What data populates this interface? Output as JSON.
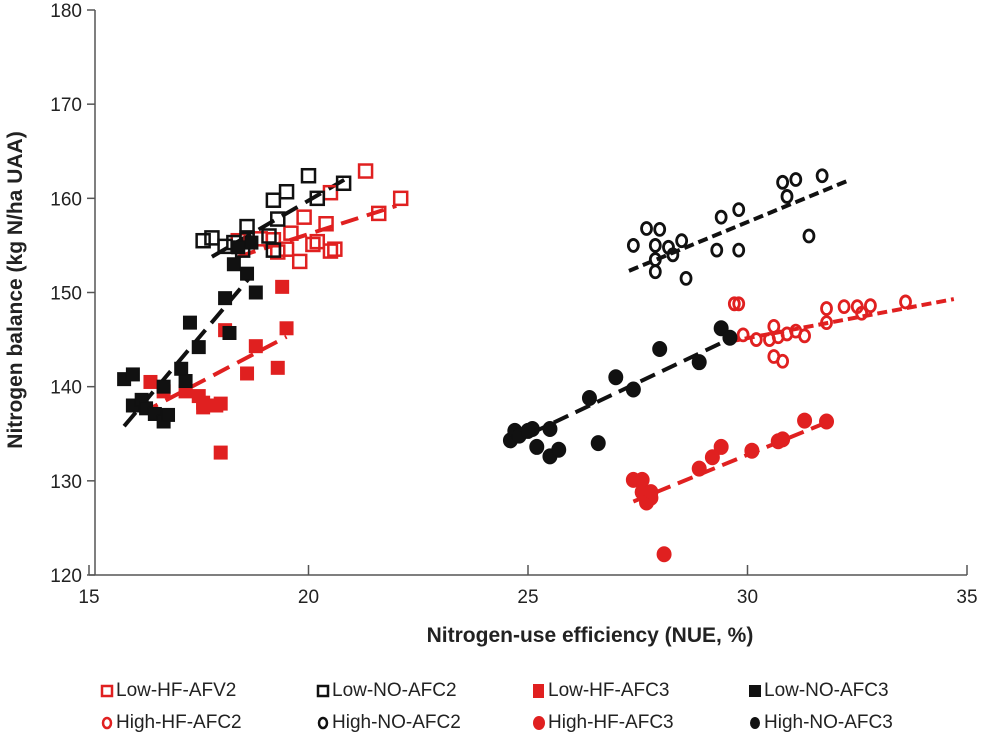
{
  "chart_data": {
    "type": "scatter",
    "title": "",
    "xlabel": "Nitrogen-use efficiency (NUE, %)",
    "ylabel": "Nitrogen balance (kg N/ha UAA)",
    "xlim": [
      15,
      35
    ],
    "ylim": [
      120,
      180
    ],
    "xticks": [
      15,
      20,
      25,
      30,
      35
    ],
    "yticks": [
      120,
      130,
      140,
      150,
      160,
      170,
      180
    ],
    "grid": false,
    "legend_position": "bottom",
    "series": [
      {
        "name": "Low-HF-AFV2",
        "color": "#e02020",
        "marker": "square",
        "filled": false,
        "points": [
          [
            21.3,
            162.9
          ],
          [
            22.1,
            160.0
          ],
          [
            21.6,
            158.4
          ],
          [
            20.5,
            160.6
          ],
          [
            20.4,
            157.3
          ],
          [
            19.9,
            158.0
          ],
          [
            19.6,
            156.3
          ],
          [
            19.8,
            153.3
          ],
          [
            20.1,
            155.1
          ],
          [
            20.2,
            155.4
          ],
          [
            19.5,
            154.6
          ],
          [
            19.3,
            154.3
          ],
          [
            19.2,
            155.6
          ],
          [
            18.9,
            155.7
          ],
          [
            20.5,
            154.4
          ],
          [
            20.6,
            154.6
          ],
          [
            18.4,
            155.5
          ]
        ],
        "trend": [
          [
            18.4,
            153.8
          ],
          [
            22.0,
            159.2
          ]
        ]
      },
      {
        "name": "Low-NO-AFC2",
        "color": "#111111",
        "marker": "square",
        "filled": false,
        "points": [
          [
            17.6,
            155.5
          ],
          [
            17.8,
            155.8
          ],
          [
            18.1,
            154.9
          ],
          [
            18.3,
            155.3
          ],
          [
            18.6,
            157.0
          ],
          [
            18.5,
            154.5
          ],
          [
            18.6,
            155.8
          ],
          [
            19.1,
            156.0
          ],
          [
            19.2,
            159.8
          ],
          [
            19.5,
            160.7
          ],
          [
            19.3,
            157.8
          ],
          [
            19.2,
            154.5
          ],
          [
            20.0,
            162.4
          ],
          [
            20.2,
            160.0
          ],
          [
            20.8,
            161.6
          ]
        ],
        "trend": [
          [
            17.8,
            153.8
          ],
          [
            20.9,
            162.2
          ]
        ]
      },
      {
        "name": "Low-HF-AFC3",
        "color": "#e02020",
        "marker": "square",
        "filled": true,
        "points": [
          [
            16.4,
            140.5
          ],
          [
            16.7,
            139.5
          ],
          [
            17.2,
            139.5
          ],
          [
            17.5,
            139.0
          ],
          [
            17.6,
            137.8
          ],
          [
            17.6,
            138.3
          ],
          [
            17.9,
            138.0
          ],
          [
            18.0,
            138.2
          ],
          [
            18.0,
            133.0
          ],
          [
            18.1,
            146.0
          ],
          [
            18.6,
            141.4
          ],
          [
            18.8,
            144.3
          ],
          [
            19.3,
            142.0
          ],
          [
            19.5,
            146.2
          ],
          [
            19.4,
            150.6
          ]
        ],
        "trend": [
          [
            16.2,
            137.2
          ],
          [
            19.5,
            145.3
          ]
        ]
      },
      {
        "name": "Low-NO-AFC3",
        "color": "#111111",
        "marker": "square",
        "filled": true,
        "points": [
          [
            15.8,
            140.8
          ],
          [
            16.0,
            141.3
          ],
          [
            16.0,
            138.0
          ],
          [
            16.2,
            138.6
          ],
          [
            16.3,
            137.7
          ],
          [
            16.5,
            137.1
          ],
          [
            16.7,
            136.3
          ],
          [
            16.8,
            137.0
          ],
          [
            16.7,
            140.0
          ],
          [
            17.1,
            141.9
          ],
          [
            17.2,
            140.6
          ],
          [
            17.3,
            146.8
          ],
          [
            17.5,
            144.2
          ],
          [
            18.1,
            149.4
          ],
          [
            18.2,
            145.7
          ],
          [
            18.3,
            153.0
          ],
          [
            18.6,
            152.0
          ],
          [
            18.8,
            150.0
          ],
          [
            18.4,
            154.8
          ],
          [
            18.7,
            155.3
          ]
        ],
        "trend": [
          [
            15.8,
            135.8
          ],
          [
            18.7,
            151.8
          ]
        ]
      },
      {
        "name": "High-HF-AFC2",
        "color": "#e02020",
        "marker": "circle",
        "filled": false,
        "points": [
          [
            29.7,
            148.8
          ],
          [
            29.8,
            148.8
          ],
          [
            29.9,
            145.5
          ],
          [
            30.2,
            145.0
          ],
          [
            30.5,
            145.0
          ],
          [
            30.6,
            146.4
          ],
          [
            30.7,
            145.3
          ],
          [
            30.9,
            145.6
          ],
          [
            31.1,
            145.9
          ],
          [
            30.6,
            143.2
          ],
          [
            30.8,
            142.7
          ],
          [
            31.3,
            145.4
          ],
          [
            31.8,
            146.8
          ],
          [
            31.8,
            148.3
          ],
          [
            32.2,
            148.5
          ],
          [
            32.5,
            148.5
          ],
          [
            32.6,
            147.8
          ],
          [
            32.8,
            148.6
          ],
          [
            33.6,
            149.0
          ]
        ],
        "trend": [
          [
            29.6,
            144.8
          ],
          [
            34.7,
            149.3
          ]
        ]
      },
      {
        "name": "High-NO-AFC2",
        "color": "#111111",
        "marker": "circle",
        "filled": false,
        "points": [
          [
            27.4,
            155.0
          ],
          [
            27.7,
            156.8
          ],
          [
            28.0,
            156.7
          ],
          [
            27.9,
            155.0
          ],
          [
            28.2,
            154.8
          ],
          [
            28.3,
            154.0
          ],
          [
            28.5,
            155.5
          ],
          [
            27.9,
            153.5
          ],
          [
            27.9,
            152.2
          ],
          [
            28.6,
            151.5
          ],
          [
            29.3,
            154.5
          ],
          [
            29.4,
            158.0
          ],
          [
            29.8,
            158.8
          ],
          [
            29.8,
            154.5
          ],
          [
            30.8,
            161.7
          ],
          [
            31.1,
            162.0
          ],
          [
            30.9,
            160.2
          ],
          [
            31.7,
            162.4
          ],
          [
            31.4,
            156.0
          ]
        ],
        "trend": [
          [
            27.3,
            152.3
          ],
          [
            32.3,
            161.9
          ]
        ]
      },
      {
        "name": "High-HF-AFC3",
        "color": "#e02020",
        "marker": "circle",
        "filled": true,
        "points": [
          [
            27.4,
            130.1
          ],
          [
            27.6,
            130.1
          ],
          [
            27.6,
            128.8
          ],
          [
            27.7,
            127.7
          ],
          [
            27.8,
            128.2
          ],
          [
            27.8,
            128.8
          ],
          [
            28.1,
            122.2
          ],
          [
            28.9,
            131.3
          ],
          [
            29.2,
            132.5
          ],
          [
            29.4,
            133.6
          ],
          [
            30.1,
            133.2
          ],
          [
            30.7,
            134.2
          ],
          [
            30.8,
            134.4
          ],
          [
            31.3,
            136.4
          ],
          [
            31.8,
            136.3
          ]
        ],
        "trend": [
          [
            27.4,
            127.8
          ],
          [
            31.8,
            136.2
          ]
        ]
      },
      {
        "name": "High-NO-AFC3",
        "color": "#111111",
        "marker": "circle",
        "filled": true,
        "points": [
          [
            24.6,
            134.3
          ],
          [
            24.7,
            135.3
          ],
          [
            24.8,
            134.8
          ],
          [
            25.1,
            135.5
          ],
          [
            25.0,
            135.3
          ],
          [
            25.2,
            133.6
          ],
          [
            25.5,
            135.5
          ],
          [
            25.5,
            132.6
          ],
          [
            25.7,
            133.3
          ],
          [
            26.6,
            134.0
          ],
          [
            26.4,
            138.8
          ],
          [
            27.0,
            141.0
          ],
          [
            27.4,
            139.7
          ],
          [
            28.0,
            144.0
          ],
          [
            28.9,
            142.6
          ],
          [
            29.4,
            146.2
          ],
          [
            29.6,
            145.2
          ]
        ],
        "trend": [
          [
            24.6,
            134.0
          ],
          [
            29.7,
            145.3
          ]
        ]
      }
    ]
  }
}
